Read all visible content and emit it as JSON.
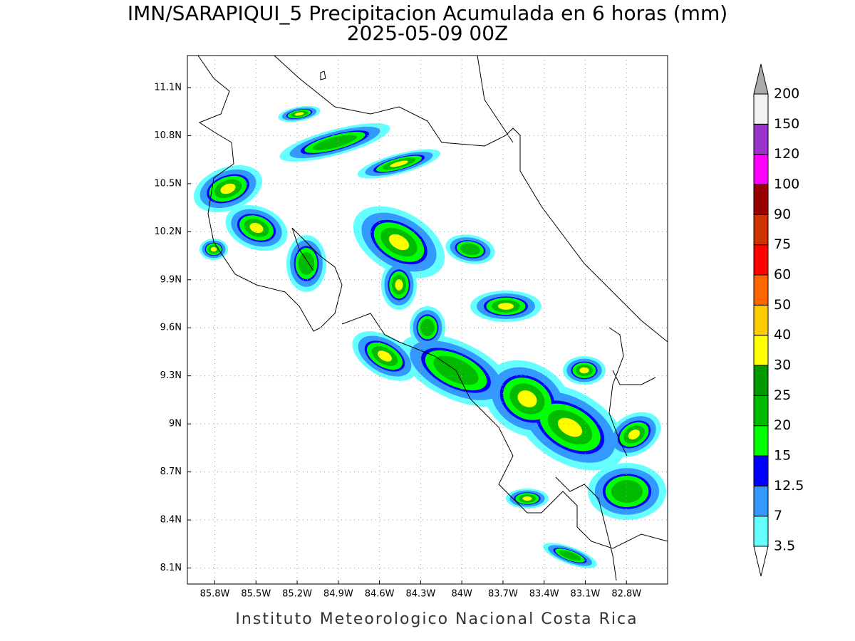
{
  "title": "IMN/SARAPIQUI_5 Precipitacion Acumulada en 6 horas (mm)",
  "subtitle": "2025-05-09 00Z",
  "map": {
    "xlim": [
      -86.0,
      -82.5
    ],
    "ylim": [
      8.0,
      11.3
    ],
    "xticks": [
      {
        "value": -85.8,
        "label": "85.8W"
      },
      {
        "value": -85.5,
        "label": "85.5W"
      },
      {
        "value": -85.2,
        "label": "85.2W"
      },
      {
        "value": -84.9,
        "label": "84.9W"
      },
      {
        "value": -84.6,
        "label": "84.6W"
      },
      {
        "value": -84.3,
        "label": "84.3W"
      },
      {
        "value": -84.0,
        "label": "84W"
      },
      {
        "value": -83.7,
        "label": "83.7W"
      },
      {
        "value": -83.4,
        "label": "83.4W"
      },
      {
        "value": -83.1,
        "label": "83.1W"
      },
      {
        "value": -82.8,
        "label": "82.8W"
      }
    ],
    "yticks": [
      {
        "value": 8.1,
        "label": "8.1N"
      },
      {
        "value": 8.4,
        "label": "8.4N"
      },
      {
        "value": 8.7,
        "label": "8.7N"
      },
      {
        "value": 9.0,
        "label": "9N"
      },
      {
        "value": 9.3,
        "label": "9.3N"
      },
      {
        "value": 9.6,
        "label": "9.6N"
      },
      {
        "value": 9.9,
        "label": "9.9N"
      },
      {
        "value": 10.2,
        "label": "10.2N"
      },
      {
        "value": 10.5,
        "label": "10.5N"
      },
      {
        "value": 10.8,
        "label": "10.8N"
      },
      {
        "value": 11.1,
        "label": "11.1N"
      }
    ],
    "grid": true
  },
  "colorbar": {
    "levels": [
      3.5,
      7,
      12.5,
      15,
      20,
      25,
      30,
      40,
      50,
      60,
      75,
      90,
      100,
      120,
      150,
      200
    ],
    "colors": [
      "#66ffff",
      "#3399ff",
      "#0000ff",
      "#00ff00",
      "#00bb00",
      "#009900",
      "#ffff00",
      "#ffcc00",
      "#ff6600",
      "#ff0000",
      "#cc3300",
      "#990000",
      "#ff00ff",
      "#9933cc",
      "#f2f2f2"
    ],
    "under_color": "#ffffff",
    "over_color": "#aaaaaa"
  },
  "footer": "Instituto Meteorologico Nacional Costa Rica"
}
